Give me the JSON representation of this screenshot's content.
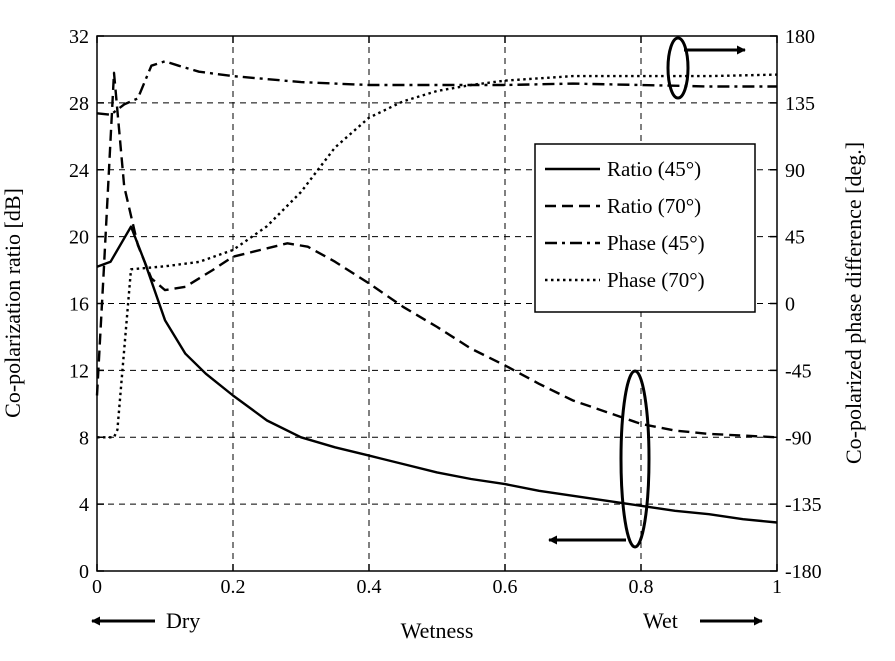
{
  "chart_data": {
    "type": "line",
    "title": "",
    "xlabel": "Wetness",
    "ylabel": "Co-polarization ratio [dB]",
    "y2label": "Co-polarized phase difference [deg.]",
    "xlim": [
      0,
      1
    ],
    "ylim": [
      0,
      32
    ],
    "y2lim": [
      -180,
      180
    ],
    "xticks": [
      "0",
      "0.2",
      "0.4",
      "0.6",
      "0.8",
      "1"
    ],
    "yticks": [
      "0",
      "4",
      "8",
      "12",
      "16",
      "20",
      "24",
      "28",
      "32"
    ],
    "y2ticks": [
      "-180",
      "-135",
      "-90",
      "-45",
      "0",
      "45",
      "90",
      "135",
      "180"
    ],
    "grid": true,
    "legend_position": "right",
    "annotations": {
      "dry": "Dry",
      "wet": "Wet"
    },
    "series": [
      {
        "name": "Ratio (45°)",
        "axis": "left",
        "style": "solid",
        "x": [
          0,
          0.02,
          0.05,
          0.07,
          0.1,
          0.13,
          0.16,
          0.2,
          0.25,
          0.3,
          0.35,
          0.4,
          0.45,
          0.5,
          0.55,
          0.6,
          0.65,
          0.7,
          0.75,
          0.8,
          0.85,
          0.9,
          0.95,
          1
        ],
        "values": [
          18.2,
          18.5,
          20.6,
          18.5,
          15,
          13,
          11.8,
          10.5,
          9,
          8,
          7.4,
          6.9,
          6.4,
          5.9,
          5.5,
          5.2,
          4.8,
          4.5,
          4.2,
          3.9,
          3.6,
          3.4,
          3.1,
          2.9
        ]
      },
      {
        "name": "Ratio (70°)",
        "axis": "left",
        "style": "dashed",
        "x": [
          0,
          0.01,
          0.025,
          0.04,
          0.06,
          0.08,
          0.1,
          0.13,
          0.17,
          0.2,
          0.24,
          0.28,
          0.31,
          0.35,
          0.4,
          0.45,
          0.5,
          0.55,
          0.6,
          0.65,
          0.7,
          0.75,
          0.8,
          0.85,
          0.9,
          0.95,
          1
        ],
        "values": [
          10.5,
          18,
          29.8,
          23,
          19.5,
          17.5,
          16.8,
          17,
          18,
          18.8,
          19.2,
          19.6,
          19.4,
          18.5,
          17.2,
          15.8,
          14.6,
          13.3,
          12.3,
          11.2,
          10.2,
          9.5,
          8.8,
          8.4,
          8.2,
          8.1,
          8
        ]
      },
      {
        "name": "Phase (45°)",
        "axis": "right",
        "style": "dashdot",
        "x": [
          0,
          0.02,
          0.04,
          0.06,
          0.08,
          0.1,
          0.12,
          0.15,
          0.2,
          0.25,
          0.3,
          0.35,
          0.4,
          0.5,
          0.6,
          0.7,
          0.8,
          0.9,
          1
        ],
        "values": [
          128,
          127,
          134,
          138,
          160,
          163,
          160,
          156,
          153,
          151,
          149,
          148,
          147,
          147,
          147,
          148,
          147,
          146,
          146
        ]
      },
      {
        "name": "Phase (70°)",
        "axis": "right",
        "style": "dotted",
        "x": [
          0,
          0.025,
          0.03,
          0.05,
          0.1,
          0.15,
          0.2,
          0.25,
          0.3,
          0.35,
          0.4,
          0.45,
          0.5,
          0.55,
          0.6,
          0.7,
          0.8,
          0.9,
          1
        ],
        "values": [
          -90,
          -90,
          -85,
          23,
          25,
          28,
          36,
          52,
          75,
          105,
          125,
          136,
          143,
          147,
          150,
          153,
          153,
          153,
          154
        ]
      }
    ]
  }
}
